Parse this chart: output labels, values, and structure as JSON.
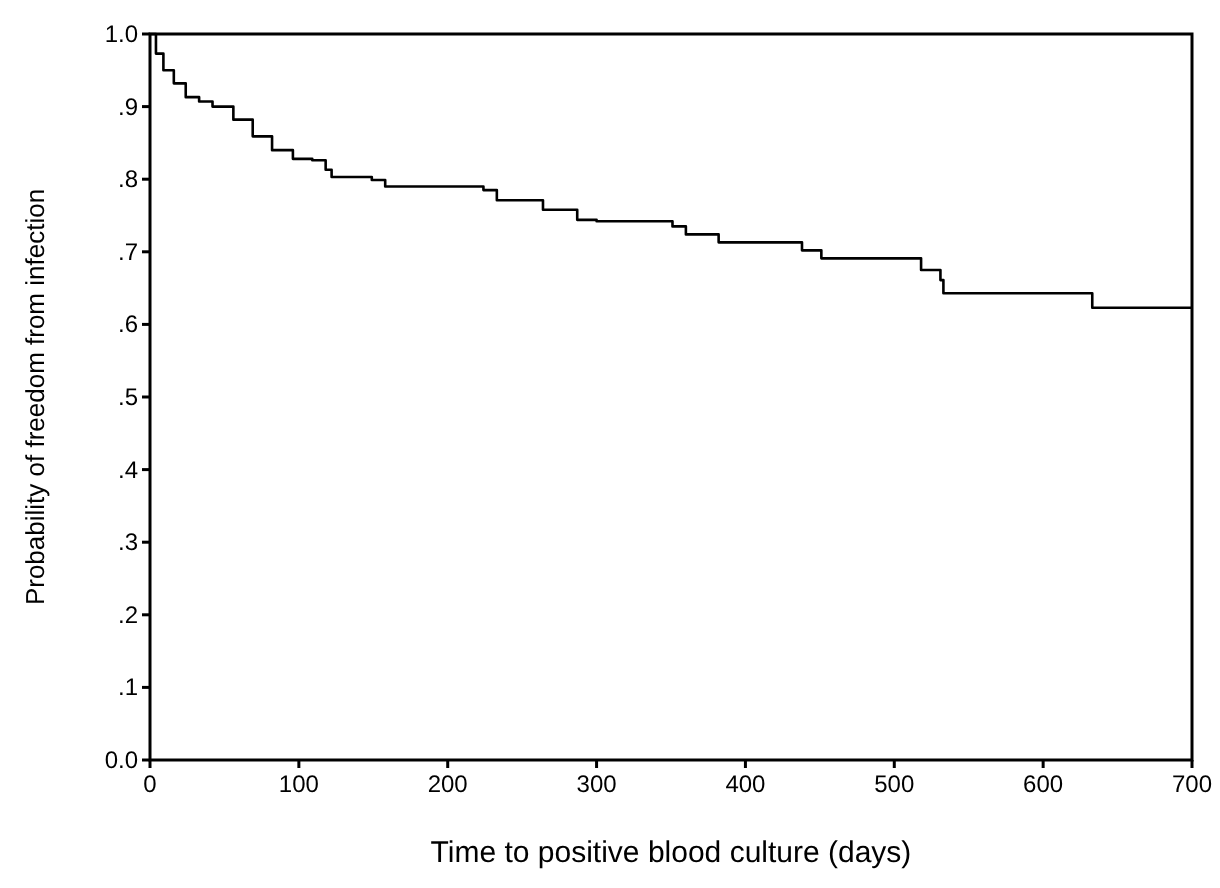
{
  "chart_data": {
    "type": "step",
    "xlabel": "Time to positive blood culture (days)",
    "ylabel": "Probability of freedom from infection",
    "x": [
      0,
      4,
      9,
      16,
      24,
      33,
      42,
      56,
      69,
      82,
      96,
      109,
      118,
      122,
      149,
      158,
      224,
      233,
      264,
      287,
      300,
      351,
      360,
      382,
      438,
      451,
      518,
      531,
      533,
      633,
      700
    ],
    "values": [
      1.0,
      0.973,
      0.95,
      0.932,
      0.913,
      0.907,
      0.9,
      0.882,
      0.859,
      0.84,
      0.828,
      0.826,
      0.813,
      0.803,
      0.799,
      0.79,
      0.785,
      0.771,
      0.758,
      0.744,
      0.742,
      0.735,
      0.724,
      0.713,
      0.702,
      0.691,
      0.675,
      0.661,
      0.643,
      0.623,
      0.623
    ],
    "color": "#000000",
    "xlim": [
      0,
      700
    ],
    "xticks": [
      0,
      100,
      200,
      300,
      400,
      500,
      600,
      700
    ],
    "ylim": [
      0,
      1
    ],
    "yticks": [
      {
        "value": 0,
        "label": "0.0"
      },
      {
        "value": 0.1,
        "label": ".1"
      },
      {
        "value": 0.2,
        "label": ".2"
      },
      {
        "value": 0.3,
        "label": ".3"
      },
      {
        "value": 0.4,
        "label": ".4"
      },
      {
        "value": 0.5,
        "label": ".5"
      },
      {
        "value": 0.6,
        "label": ".6"
      },
      {
        "value": 0.7,
        "label": ".7"
      },
      {
        "value": 0.8,
        "label": ".8"
      },
      {
        "value": 0.9,
        "label": ".9"
      },
      {
        "value": 1,
        "label": "1.0"
      }
    ],
    "grid": false
  }
}
